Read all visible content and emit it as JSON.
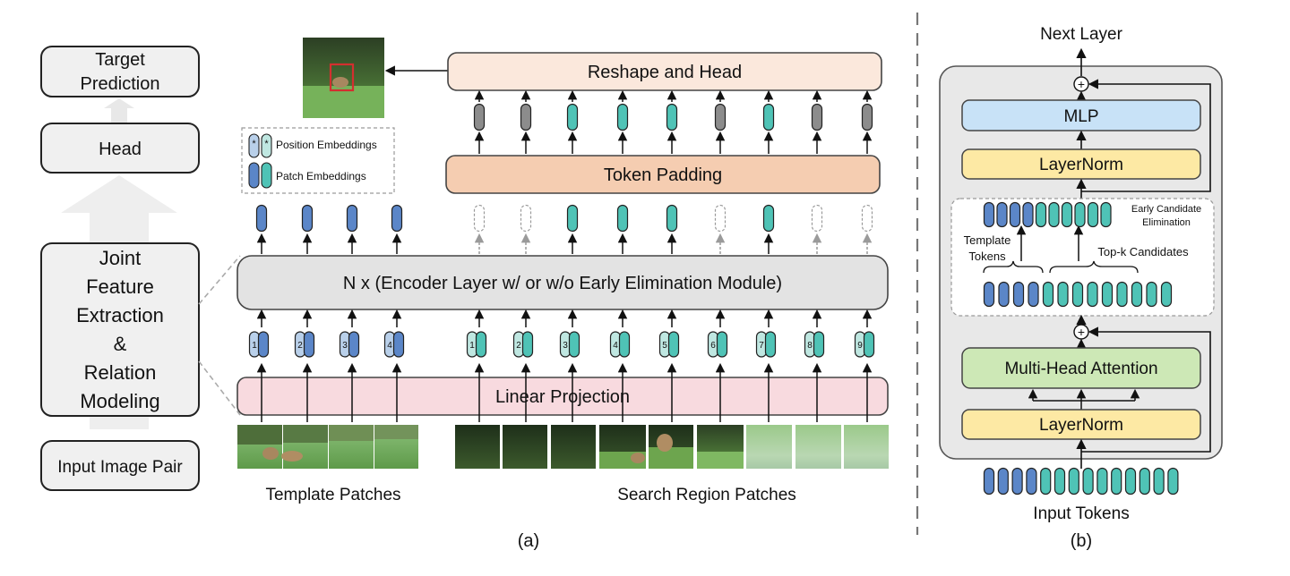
{
  "left_flow": {
    "target_prediction": [
      "Target",
      "Prediction"
    ],
    "head": "Head",
    "joint": [
      "Joint",
      "Feature",
      "Extraction",
      "&",
      "Relation",
      "Modeling"
    ],
    "input_pair": "Input Image Pair"
  },
  "panel_a": {
    "reshape_head": "Reshape and Head",
    "token_padding": "Token Padding",
    "encoder": "N x (Encoder Layer w/ or w/o Early Elimination Module)",
    "linear_projection": "Linear Projection",
    "legend": {
      "position_embeddings": "Position Embeddings",
      "patch_embeddings": "Patch Embeddings",
      "position_marker": "*"
    },
    "template_numbers": [
      "1",
      "2",
      "3",
      "4"
    ],
    "search_numbers": [
      "1",
      "2",
      "3",
      "4",
      "5",
      "6",
      "7",
      "8",
      "9"
    ],
    "template_caption": "Template Patches",
    "search_caption": "Search Region Patches",
    "caption": "(a)",
    "output_token_kinds": [
      "gray",
      "gray",
      "teal",
      "teal",
      "teal",
      "gray",
      "teal",
      "gray",
      "gray"
    ],
    "encoder_output_kinds": [
      "dashed",
      "dashed",
      "teal",
      "teal",
      "teal",
      "dashed",
      "teal",
      "dashed",
      "dashed"
    ]
  },
  "panel_b": {
    "next_layer": "Next Layer",
    "mlp": "MLP",
    "layernorm_top": "LayerNorm",
    "early_elim": [
      "Early Candidate",
      "Elimination"
    ],
    "template_tokens": [
      "Template",
      "Tokens"
    ],
    "topk": "Top-k Candidates",
    "mha": "Multi-Head Attention",
    "layernorm_bottom": "LayerNorm",
    "input_tokens": "Input Tokens",
    "caption": "(b)",
    "plus": "+"
  },
  "colors": {
    "blue_token": "#5b86c8",
    "light_blue_token": "#b9d0ea",
    "teal_token": "#4fc3b6",
    "light_teal_token": "#bfe7e1",
    "gray_token": "#8c8c8c",
    "reshape_fill": "#fbe8dc",
    "padding_fill": "#f5cdb1",
    "encoder_fill": "#e3e3e3",
    "linear_fill": "#f8dadf",
    "mlp_fill": "#c8e2f7",
    "layernorm_fill": "#fde9a4",
    "mha_fill": "#cde8b6"
  }
}
